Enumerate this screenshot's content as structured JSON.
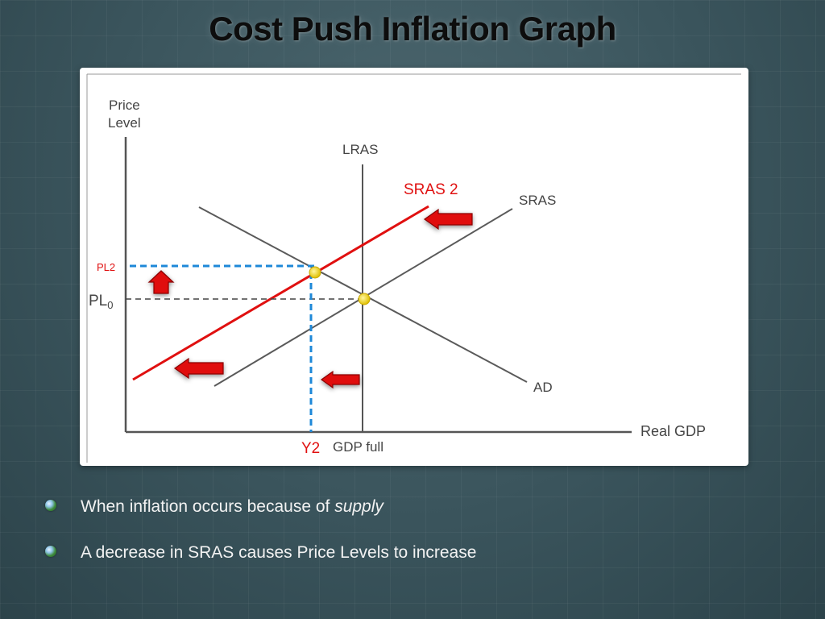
{
  "title": "Cost Push Inflation Graph",
  "graph": {
    "y_axis_label": [
      "Price",
      "Level"
    ],
    "x_axis_label": "Real GDP",
    "lras_label": "LRAS",
    "sras_label": "SRAS",
    "sras2_label": "SRAS 2",
    "ad_label": "AD",
    "pl0_label": "PL",
    "pl0_sub": "0",
    "pl2_label": "PL2",
    "y2_label": "Y2",
    "gdp_full_label": "GDP full",
    "colors": {
      "shifted_curve": "#e01010",
      "arrow_fill": "#e01010",
      "equilibrium_point": "#f0d000",
      "new_price_guide": "#1e88d8",
      "old_price_guide": "#444444",
      "curve": "#5a5a5a"
    }
  },
  "bullets": [
    {
      "text": "When inflation occurs because of ",
      "emphasis": "supply"
    },
    {
      "text": "A decrease in SRAS causes Price Levels to increase",
      "emphasis": ""
    }
  ]
}
